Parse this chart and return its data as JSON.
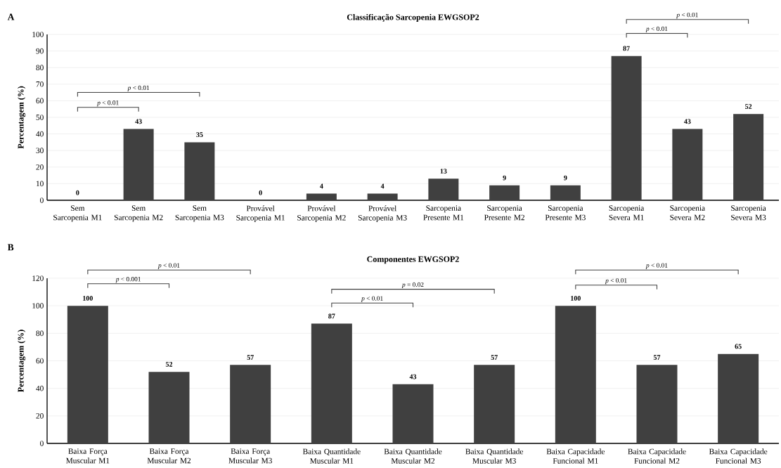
{
  "chart_data": [
    {
      "type": "bar",
      "title": "Classificação Sarcopenia EWGSOP2",
      "ylabel": "Percentagem (%)",
      "categories": [
        "Sem Sarcopenia M1",
        "Sem Sarcopenia M2",
        "Sem Sarcopenia M3",
        "Provável Sarcopenia M1",
        "Provável Sarcopenia M2",
        "Provável Sarcopenia M3",
        "Sarcopenia Presente M1",
        "Sarcopenia Presente M2",
        "Sarcopenia Presente M3",
        "Sarcopenia Severa M1",
        "Sarcopenia Severa M2",
        "Sarcopenia Severa M3"
      ],
      "values": [
        0,
        43,
        35,
        0,
        4,
        4,
        13,
        9,
        9,
        87,
        43,
        52
      ],
      "color": "#404040",
      "ylim": [
        0,
        100
      ],
      "yticks": [
        0,
        10,
        20,
        30,
        40,
        50,
        60,
        70,
        80,
        90,
        100
      ],
      "grid": "y",
      "data_labels": true,
      "annotations": [
        "A",
        "*p* < 0.01",
        "*p* < 0.01",
        "*p* < 0.01",
        "*p* < 0.01"
      ]
    },
    {
      "type": "bar",
      "title": "Componentes EWGSOP2",
      "ylabel": "Percentagem (%)",
      "categories": [
        "Baixa Força Muscular M1",
        "Baixa Força Muscular M2",
        "Baixa Força Muscular M3",
        "Baixa Quantidade Muscular M1",
        "Baixa Quantidade Muscular M2",
        "Baixa Quantidade Muscular M3",
        "Baixa Capacidade Funcional M1",
        "Baixa Capacidade Funcional M2",
        "Baixa Capacidade Funcional M3"
      ],
      "values": [
        100,
        52,
        57,
        87,
        43,
        57,
        100,
        57,
        65
      ],
      "color": "#404040",
      "ylim": [
        0,
        120
      ],
      "yticks": [
        0,
        20,
        40,
        60,
        80,
        100,
        120
      ],
      "grid": "y",
      "data_labels": true,
      "annotations": [
        "B",
        "*p* < 0.001",
        "*p* < 0.01",
        "*p* < 0.01",
        "*p* = 0.02",
        "*p* < 0.01",
        "*p* < 0.01"
      ]
    }
  ]
}
